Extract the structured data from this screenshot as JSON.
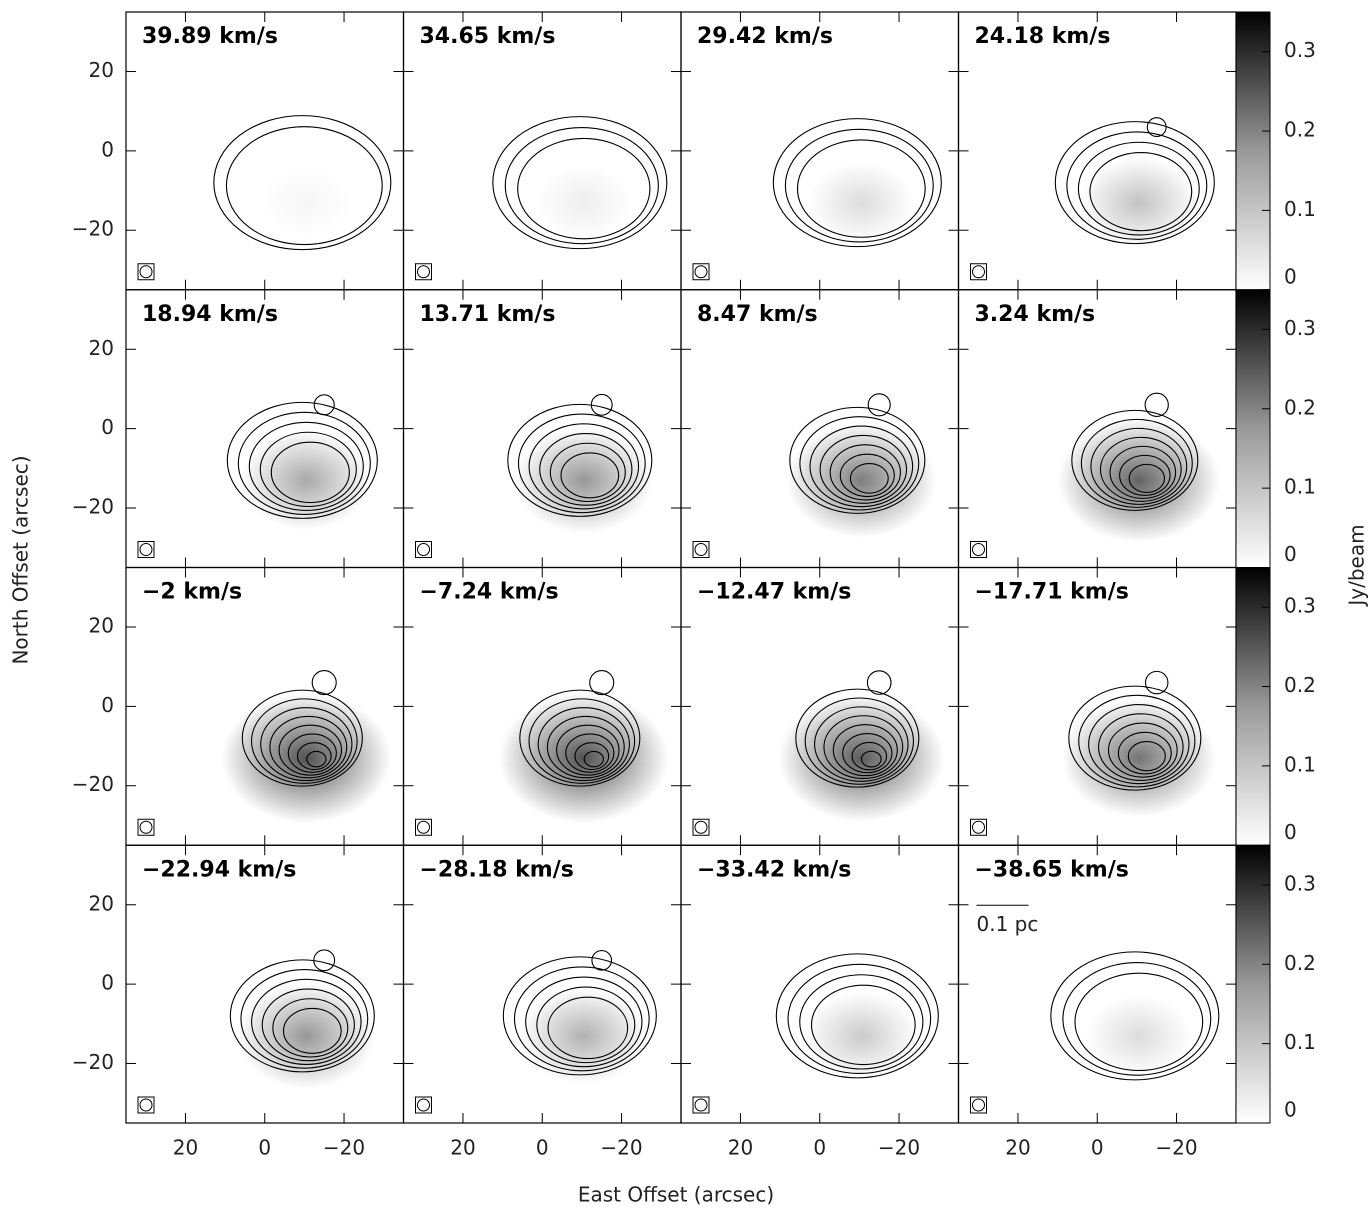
{
  "chart_data": {
    "type": "channel-map",
    "xlabel": "East Offset (arcsec)",
    "ylabel": "North Offset (arcsec)",
    "xlim": [
      35,
      -35
    ],
    "ylim": [
      -35,
      35
    ],
    "xticks": [
      20,
      0,
      {
        "value": -20,
        "label": "−20"
      }
    ],
    "yticks": [
      {
        "value": -20,
        "label": "−20"
      },
      0,
      20
    ],
    "panels": [
      "39.89 km/s",
      "34.65 km/s",
      "29.42 km/s",
      "24.18 km/s",
      "18.94 km/s",
      "13.71 km/s",
      "8.47 km/s",
      "3.24 km/s",
      "−2 km/s",
      "−7.24 km/s",
      "−12.47 km/s",
      "−17.71 km/s",
      "−22.94 km/s",
      "−28.18 km/s",
      "−33.42 km/s",
      "−38.65 km/s"
    ],
    "colorbar": {
      "label": "Jy/beam",
      "lim": [
        0,
        0.35
      ],
      "ticks": [
        0,
        0.1,
        0.2,
        0.3
      ]
    },
    "scale_bar": "0.1 pc"
  }
}
